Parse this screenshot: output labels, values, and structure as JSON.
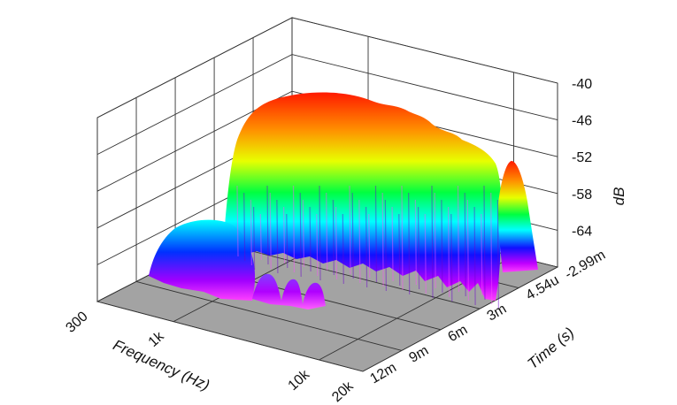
{
  "chart_data": {
    "type": "waterfall-3d-surface",
    "x_axis": {
      "label": "Frequency (Hz)",
      "scale": "log",
      "range": [
        300,
        20000
      ],
      "ticks": [
        "300",
        "1k",
        "10k",
        "20k"
      ]
    },
    "y_axis": {
      "label": "Time (s)",
      "range": [
        -0.00299,
        0.012
      ],
      "ticks": [
        "-2.99m",
        "4.54u",
        "3m",
        "6m",
        "9m",
        "12m"
      ]
    },
    "z_axis": {
      "label": "dB",
      "range": [
        -70,
        -40
      ],
      "ticks": [
        "-40",
        "-46",
        "-52",
        "-58",
        "-64"
      ]
    },
    "colormap": [
      "#ff0000",
      "#ff8000",
      "#ffff00",
      "#00ff00",
      "#00ffff",
      "#0000ff",
      "#ff00ff"
    ],
    "floor_color": "#a0a0a0",
    "grid": true
  }
}
